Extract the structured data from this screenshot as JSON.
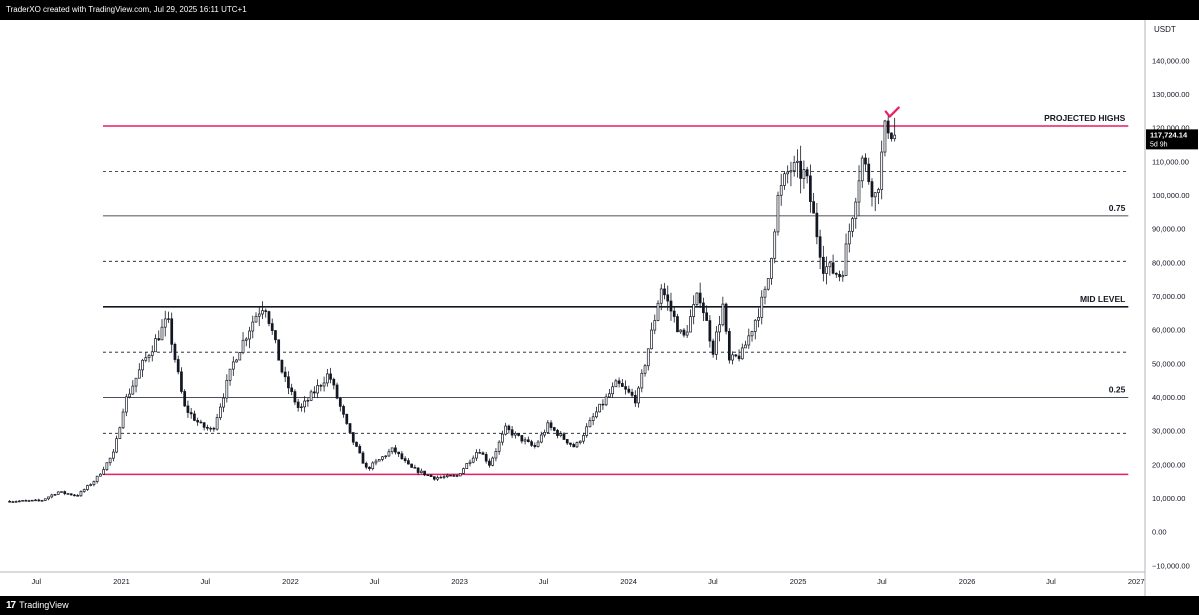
{
  "header": {
    "caption": "TraderXO created with TradingView.com, Jul 29, 2025 16:11 UTC+1"
  },
  "footer": {
    "brand": "TradingView",
    "logo_icon": "tradingview-logo-icon"
  },
  "chart_data": {
    "type": "candlestick",
    "currency": "USDT",
    "ylim": [
      -12000,
      152000
    ],
    "y_ticks": [
      -10000,
      0,
      10000,
      20000,
      30000,
      40000,
      50000,
      60000,
      70000,
      80000,
      90000,
      100000,
      110000,
      120000,
      130000,
      140000
    ],
    "y_tick_labels": [
      "−10,000.00",
      "0.00",
      "10,000.00",
      "20,000.00",
      "30,000.00",
      "40,000.00",
      "50,000.00",
      "60,000.00",
      "70,000.00",
      "80,000.00",
      "90,000.00",
      "100,000.00",
      "110,000.00",
      "120,000.00",
      "130,000.00",
      "140,000.00"
    ],
    "x_ticks": [
      {
        "label": "Jul",
        "date": "2020-07-01"
      },
      {
        "label": "2021",
        "date": "2021-01-01"
      },
      {
        "label": "Jul",
        "date": "2021-07-01"
      },
      {
        "label": "2022",
        "date": "2022-01-01"
      },
      {
        "label": "Jul",
        "date": "2022-07-01"
      },
      {
        "label": "2023",
        "date": "2023-01-01"
      },
      {
        "label": "Jul",
        "date": "2023-07-01"
      },
      {
        "label": "2024",
        "date": "2024-01-01"
      },
      {
        "label": "Jul",
        "date": "2024-07-01"
      },
      {
        "label": "2025",
        "date": "2025-01-01"
      },
      {
        "label": "Jul",
        "date": "2025-07-01"
      },
      {
        "label": "2026",
        "date": "2026-01-01"
      },
      {
        "label": "Jul",
        "date": "2026-07-01"
      },
      {
        "label": "2027",
        "date": "2027-01-01"
      }
    ],
    "x_range": [
      "2020-05-01",
      "2027-01-20"
    ],
    "last_price": {
      "value": 117724.14,
      "label": "117,724.14",
      "countdown": "5d 9h"
    },
    "levels": [
      {
        "value": 120500,
        "style": "solid",
        "color": "#e91e63",
        "label": "PROJECTED HIGHS"
      },
      {
        "value": 107000,
        "style": "dashed",
        "color": "#131722",
        "label": ""
      },
      {
        "value": 93800,
        "style": "solid",
        "color": "#131722",
        "label": "0.75"
      },
      {
        "value": 80300,
        "style": "dashed",
        "color": "#131722",
        "label": ""
      },
      {
        "value": 66800,
        "style": "bold",
        "color": "#131722",
        "label": "MID LEVEL"
      },
      {
        "value": 53300,
        "style": "dashed",
        "color": "#131722",
        "label": ""
      },
      {
        "value": 39800,
        "style": "solid",
        "color": "#131722",
        "label": "0.25"
      },
      {
        "value": 29200,
        "style": "dashed",
        "color": "#131722",
        "label": ""
      },
      {
        "value": 17000,
        "style": "solid",
        "color": "#e91e63",
        "label": ""
      }
    ],
    "levels_start": "2020-12-15",
    "levels_end": "2026-12-15",
    "checkmark": {
      "date": "2025-07-20",
      "value": 124500,
      "color": "#e91e63"
    },
    "anchors": [
      [
        "2020-05-01",
        9000
      ],
      [
        "2020-07-15",
        9200
      ],
      [
        "2020-08-20",
        11800
      ],
      [
        "2020-10-01",
        10700
      ],
      [
        "2020-11-10",
        15500
      ],
      [
        "2020-12-20",
        23500
      ],
      [
        "2021-01-10",
        38000
      ],
      [
        "2021-02-20",
        50000
      ],
      [
        "2021-04-14",
        63000
      ],
      [
        "2021-05-20",
        37000
      ],
      [
        "2021-06-25",
        31500
      ],
      [
        "2021-07-20",
        30000
      ],
      [
        "2021-09-05",
        51000
      ],
      [
        "2021-10-20",
        64000
      ],
      [
        "2021-11-10",
        68000
      ],
      [
        "2021-12-20",
        46000
      ],
      [
        "2022-01-24",
        36000
      ],
      [
        "2022-03-28",
        47000
      ],
      [
        "2022-05-12",
        29000
      ],
      [
        "2022-06-18",
        18500
      ],
      [
        "2022-08-14",
        24500
      ],
      [
        "2022-09-20",
        19000
      ],
      [
        "2022-11-10",
        16000
      ],
      [
        "2022-12-30",
        16500
      ],
      [
        "2023-02-15",
        24500
      ],
      [
        "2023-03-10",
        20000
      ],
      [
        "2023-04-14",
        30500
      ],
      [
        "2023-06-15",
        25000
      ],
      [
        "2023-07-14",
        31500
      ],
      [
        "2023-09-11",
        25000
      ],
      [
        "2023-10-25",
        35000
      ],
      [
        "2023-12-10",
        44000
      ],
      [
        "2024-01-22",
        39000
      ],
      [
        "2024-02-28",
        62000
      ],
      [
        "2024-03-14",
        73000
      ],
      [
        "2024-05-01",
        57000
      ],
      [
        "2024-06-05",
        71000
      ],
      [
        "2024-07-05",
        54000
      ],
      [
        "2024-07-29",
        69000
      ],
      [
        "2024-08-05",
        50000
      ],
      [
        "2024-09-06",
        53000
      ],
      [
        "2024-10-29",
        72000
      ],
      [
        "2024-11-22",
        99000
      ],
      [
        "2024-12-17",
        108000
      ],
      [
        "2025-01-20",
        106000
      ],
      [
        "2025-02-28",
        79000
      ],
      [
        "2025-04-08",
        76000
      ],
      [
        "2025-05-22",
        111000
      ],
      [
        "2025-06-22",
        99000
      ],
      [
        "2025-07-14",
        122000
      ],
      [
        "2025-07-29",
        117724
      ]
    ]
  }
}
